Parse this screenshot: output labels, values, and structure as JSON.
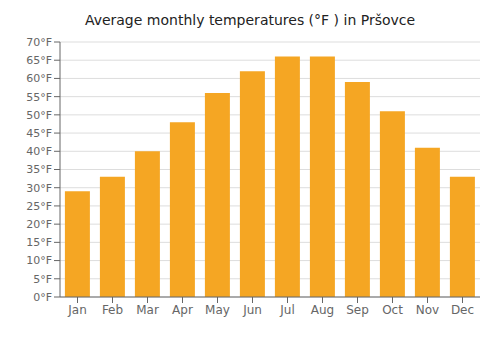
{
  "chart_data": {
    "type": "bar",
    "title": "Average monthly temperatures (°F ) in Pršovce",
    "categories": [
      "Jan",
      "Feb",
      "Mar",
      "Apr",
      "May",
      "Jun",
      "Jul",
      "Aug",
      "Sep",
      "Oct",
      "Nov",
      "Dec"
    ],
    "values": [
      29.0,
      33.0,
      40.0,
      48.0,
      56.0,
      62.0,
      66.0,
      66.0,
      59.0,
      51.0,
      41.0,
      33.0
    ],
    "color": "#F5A623",
    "ylim": [
      0,
      70
    ],
    "yticks": [
      {
        "value": 0,
        "label": "0°F"
      },
      {
        "value": 5,
        "label": "5°F"
      },
      {
        "value": 10,
        "label": "10°F"
      },
      {
        "value": 15,
        "label": "15°F"
      },
      {
        "value": 20,
        "label": "20°F"
      },
      {
        "value": 25,
        "label": "25°F"
      },
      {
        "value": 30,
        "label": "30°F"
      },
      {
        "value": 35,
        "label": "35°F"
      },
      {
        "value": 40,
        "label": "40°F"
      },
      {
        "value": 45,
        "label": "45°F"
      },
      {
        "value": 50,
        "label": "50°F"
      },
      {
        "value": 55,
        "label": "55°F"
      },
      {
        "value": 60,
        "label": "60°F"
      },
      {
        "value": 65,
        "label": "65°F"
      },
      {
        "value": 70,
        "label": "70°F"
      }
    ],
    "grid": true
  }
}
